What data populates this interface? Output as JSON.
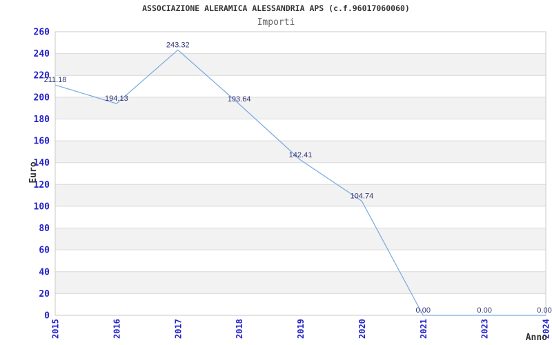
{
  "header": {
    "title": "ASSOCIAZIONE ALERAMICA ALESSANDRIA APS (c.f.96017060060)",
    "subtitle": "Importi"
  },
  "chart_data": {
    "type": "line",
    "title": "ASSOCIAZIONE ALERAMICA ALESSANDRIA APS (c.f.96017060060)",
    "subtitle": "Importi",
    "xlabel": "Anno",
    "ylabel": "Euro",
    "x_categories": [
      "2015",
      "2016",
      "2017",
      "2018",
      "2019",
      "2020",
      "2021",
      "2023",
      "2024"
    ],
    "values": [
      211.18,
      194.13,
      243.32,
      193.64,
      142.41,
      104.74,
      0,
      0,
      0
    ],
    "point_labels": [
      "211.18",
      "194.13",
      "243.32",
      "193.64",
      "142.41",
      "104.74",
      "0.00",
      "0.00",
      "0.00"
    ],
    "ylim": [
      0,
      260
    ],
    "y_tick_step": 20,
    "y_tick_labels": [
      "0",
      "20",
      "40",
      "60",
      "80",
      "100",
      "120",
      "140",
      "160",
      "180",
      "200",
      "220",
      "240",
      "260"
    ],
    "legend": "none",
    "grid": "alternating-horizontal-bands",
    "colors": {
      "line": "#7AACE0",
      "tick_label": "#2222CC",
      "point_label": "#333377",
      "band": "#F2F2F2",
      "grid": "#D9D9D9",
      "border": "#C9C9C9",
      "title": "#333333",
      "subtitle": "#666666",
      "axis_title": "#333333",
      "background": "#FFFFFF"
    }
  }
}
